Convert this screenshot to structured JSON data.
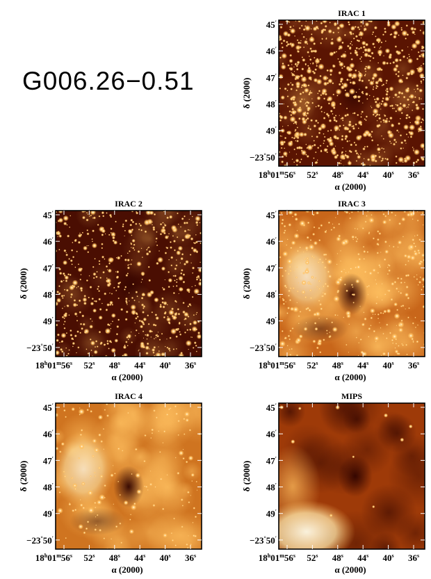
{
  "figure": {
    "source_name": "G006.26−0.51",
    "panels": [
      {
        "id": "irac1",
        "title": "IRAC 1",
        "style": "stars-dark"
      },
      {
        "id": "irac2",
        "title": "IRAC 2",
        "style": "stars-darker"
      },
      {
        "id": "irac3",
        "title": "IRAC 3",
        "style": "mixed"
      },
      {
        "id": "irac4",
        "title": "IRAC 4",
        "style": "diffuse"
      },
      {
        "id": "mips",
        "title": "MIPS",
        "style": "mips"
      }
    ],
    "y_axis": {
      "label": "δ (2000)",
      "ticks": [
        {
          "text": "45",
          "sup": "′"
        },
        {
          "text": "46",
          "sup": "′"
        },
        {
          "text": "47",
          "sup": "′"
        },
        {
          "text": "48",
          "sup": "′"
        },
        {
          "text": "49",
          "sup": "′"
        },
        {
          "text": "−23",
          "sup": "°",
          "text2": "50",
          "sup2": "′"
        }
      ]
    },
    "x_axis": {
      "label": "α (2000)",
      "ticks": [
        [
          {
            "t": "18"
          },
          {
            "t": "h",
            "s": 1
          },
          {
            "t": "01"
          },
          {
            "t": "m",
            "s": 1
          },
          {
            "t": "56"
          },
          {
            "t": "s",
            "s": 1
          }
        ],
        [
          {
            "t": "52"
          },
          {
            "t": "s",
            "s": 1
          }
        ],
        [
          {
            "t": "48"
          },
          {
            "t": "s",
            "s": 1
          }
        ],
        [
          {
            "t": "44"
          },
          {
            "t": "s",
            "s": 1
          }
        ],
        [
          {
            "t": "40"
          },
          {
            "t": "s",
            "s": 1
          }
        ],
        [
          {
            "t": "36"
          },
          {
            "t": "s",
            "s": 1
          }
        ]
      ]
    },
    "colors": {
      "frame": "#000000",
      "map_dark": "#3a0700",
      "map_mid": "#b64d05",
      "map_bright": "#ffc060",
      "map_white": "#fffbe8"
    }
  }
}
